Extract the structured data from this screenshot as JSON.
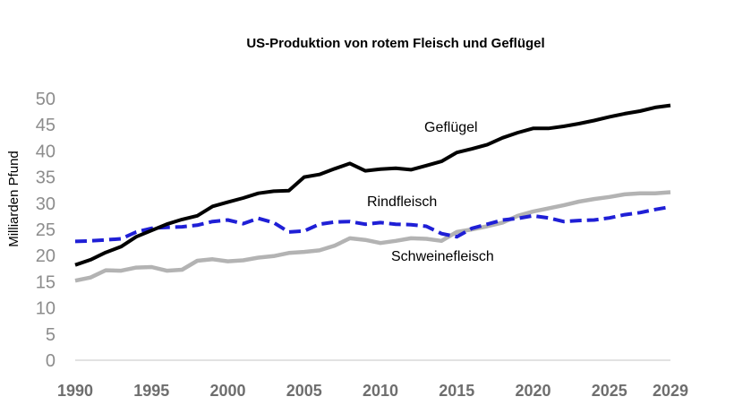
{
  "chart_data": {
    "type": "line",
    "title": "US-Produktion von rotem Fleisch und Geflügel",
    "xlabel": "",
    "ylabel": "Milliarden Pfund",
    "xlim": [
      1990,
      2029
    ],
    "ylim": [
      0,
      50
    ],
    "yticks": [
      "0",
      "5",
      "10",
      "15",
      "20",
      "25",
      "30",
      "35",
      "40",
      "45",
      "50"
    ],
    "xticks": [
      "1990",
      "1995",
      "2000",
      "2005",
      "2010",
      "2015",
      "2020",
      "2025",
      "2029"
    ],
    "x": [
      1990,
      1991,
      1992,
      1993,
      1994,
      1995,
      1996,
      1997,
      1998,
      1999,
      2000,
      2001,
      2002,
      2003,
      2004,
      2005,
      2006,
      2007,
      2008,
      2009,
      2010,
      2011,
      2012,
      2013,
      2014,
      2015,
      2016,
      2017,
      2018,
      2019,
      2020,
      2021,
      2022,
      2023,
      2024,
      2025,
      2026,
      2027,
      2028,
      2029
    ],
    "series": [
      {
        "name": "Geflügel",
        "color": "#000000",
        "style": "solid",
        "values": [
          18.2,
          19.2,
          20.6,
          21.7,
          23.6,
          24.8,
          26.0,
          26.9,
          27.6,
          29.4,
          30.2,
          31.0,
          31.9,
          32.3,
          32.4,
          35.0,
          35.5,
          36.6,
          37.6,
          36.2,
          36.5,
          36.7,
          36.4,
          37.2,
          38.0,
          39.7,
          40.4,
          41.2,
          42.5,
          43.5,
          44.3,
          44.3,
          44.7,
          45.2,
          45.8,
          46.5,
          47.1,
          47.6,
          48.3,
          48.7
        ]
      },
      {
        "name": "Rindfleisch",
        "color": "#1f1fd6",
        "style": "dashed",
        "values": [
          22.7,
          22.8,
          23.0,
          23.2,
          24.5,
          25.2,
          25.4,
          25.5,
          25.8,
          26.5,
          26.8,
          26.1,
          27.1,
          26.3,
          24.5,
          24.7,
          26.0,
          26.4,
          26.5,
          26.0,
          26.3,
          26.0,
          25.9,
          25.6,
          24.2,
          23.6,
          25.2,
          26.0,
          26.8,
          27.1,
          27.6,
          27.2,
          26.5,
          26.7,
          26.8,
          27.2,
          27.8,
          28.2,
          28.8,
          29.3
        ]
      },
      {
        "name": "Schweinefleisch",
        "color": "#b3b3b3",
        "style": "solid",
        "values": [
          15.2,
          15.8,
          17.2,
          17.1,
          17.7,
          17.8,
          17.1,
          17.3,
          19.0,
          19.3,
          18.9,
          19.1,
          19.6,
          19.9,
          20.5,
          20.7,
          21.0,
          21.9,
          23.3,
          23.0,
          22.4,
          22.8,
          23.3,
          23.2,
          22.8,
          24.5,
          25.0,
          25.6,
          26.3,
          27.6,
          28.4,
          29.0,
          29.6,
          30.3,
          30.8,
          31.2,
          31.7,
          31.9,
          31.9,
          32.1
        ]
      }
    ],
    "annotations": [
      {
        "text": "Geflügel",
        "series": "Geflügel"
      },
      {
        "text": "Rindfleisch",
        "series": "Rindfleisch"
      },
      {
        "text": "Schweinefleisch",
        "series": "Schweinefleisch"
      }
    ],
    "grid": false,
    "legend": "none"
  }
}
